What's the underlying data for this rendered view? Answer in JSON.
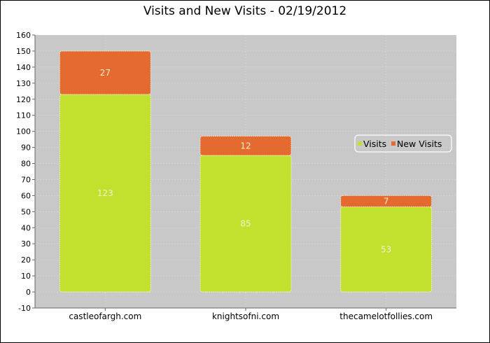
{
  "chart_data": {
    "type": "bar",
    "stacked": true,
    "title": "Visits and New Visits - 02/19/2012",
    "xlabel": "",
    "ylabel": "",
    "categories": [
      "castleofargh.com",
      "knightsofni.com",
      "thecamelotfollies.com"
    ],
    "series": [
      {
        "name": "Visits",
        "values": [
          123,
          85,
          53
        ],
        "color": "#c2e12e"
      },
      {
        "name": "New Visits",
        "values": [
          27,
          12,
          7
        ],
        "color": "#e46a2f"
      }
    ],
    "ylim": [
      -10,
      160
    ],
    "yticks": [
      -10,
      0,
      10,
      20,
      30,
      40,
      50,
      60,
      70,
      80,
      90,
      100,
      110,
      120,
      130,
      140,
      150,
      160
    ],
    "grid": true,
    "legend": "right",
    "plot_background": "#c8c8c8"
  }
}
